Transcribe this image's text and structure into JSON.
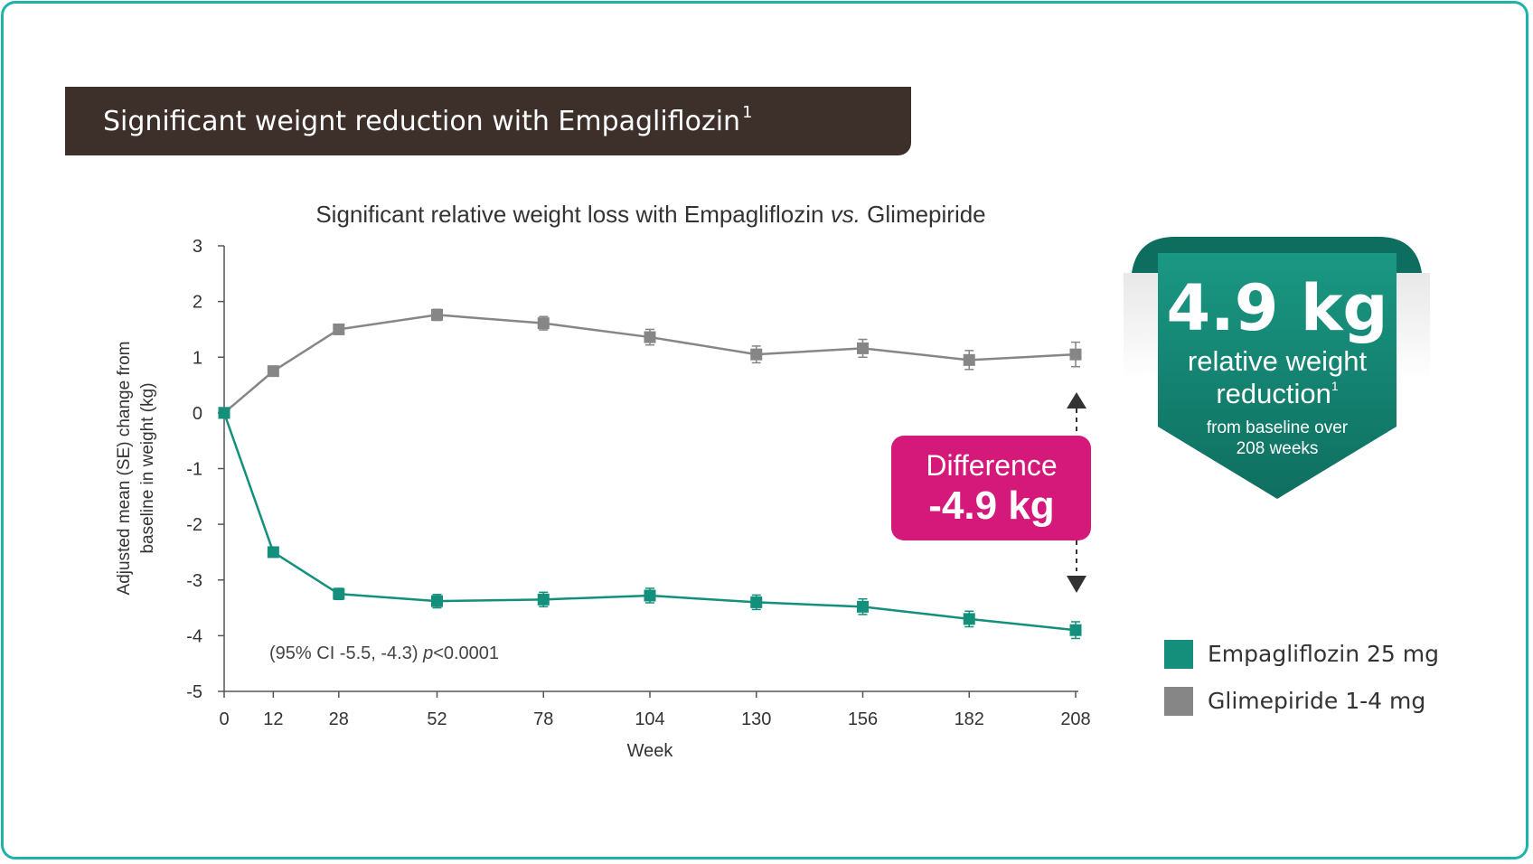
{
  "banner": {
    "title": "Significant weignt reduction with Empagliflozin",
    "sup": "1"
  },
  "colors": {
    "empagliflozin": "#138f7c",
    "glimepiride": "#868686",
    "magenta": "#d4197a",
    "teal": "#12806f",
    "banner": "#3d302b",
    "frame": "#20b2aa"
  },
  "chart_data": {
    "type": "line",
    "title_prefix": "Significant relative weight loss with Empagliflozin ",
    "title_vs": "vs.",
    "title_suffix": " Glimepiride",
    "xlabel": "Week",
    "ylabel_line1": "Adjusted mean (SE) change from",
    "ylabel_line2": "baseline in weight (kg)",
    "x": [
      0,
      12,
      28,
      52,
      78,
      104,
      130,
      156,
      182,
      208
    ],
    "x_tick_labels": [
      "0",
      "12",
      "28",
      "52",
      "78",
      "104",
      "130",
      "156",
      "182",
      "208"
    ],
    "ylim": [
      -5,
      3
    ],
    "y_ticks": [
      3,
      2,
      1,
      0,
      -1,
      -2,
      -3,
      -4,
      -5
    ],
    "y_tick_labels": [
      "3",
      "2",
      "1",
      "0",
      "-1",
      "-2",
      "-3",
      "-4",
      "-5"
    ],
    "series": [
      {
        "name": "Empagliflozin 25 mg",
        "values": [
          0,
          -2.5,
          -3.25,
          -3.38,
          -3.35,
          -3.28,
          -3.4,
          -3.48,
          -3.7,
          -3.9
        ],
        "se": [
          0,
          0.08,
          0.1,
          0.12,
          0.13,
          0.13,
          0.13,
          0.14,
          0.14,
          0.15
        ]
      },
      {
        "name": "Glimepiride 1-4 mg",
        "values": [
          0,
          0.75,
          1.5,
          1.76,
          1.61,
          1.36,
          1.05,
          1.16,
          0.95,
          1.05
        ],
        "se": [
          0,
          0.08,
          0.08,
          0.1,
          0.12,
          0.14,
          0.15,
          0.16,
          0.17,
          0.22
        ]
      }
    ],
    "annotation": {
      "ci_text": "(95% CI -5.5, -4.3) ",
      "p_label": "p",
      "p_value": "<0.0001"
    },
    "difference": {
      "label": "Difference",
      "value": "-4.9 kg"
    }
  },
  "ribbon": {
    "big": "4.9 kg",
    "line1": "relative weight",
    "line2": "reduction",
    "sup": "1",
    "line3": "from baseline over",
    "line4": "208 weeks"
  },
  "legend": [
    {
      "label": "Empagliflozin 25 mg",
      "color": "#138f7c"
    },
    {
      "label": "Glimepiride 1-4 mg",
      "color": "#868686"
    }
  ]
}
